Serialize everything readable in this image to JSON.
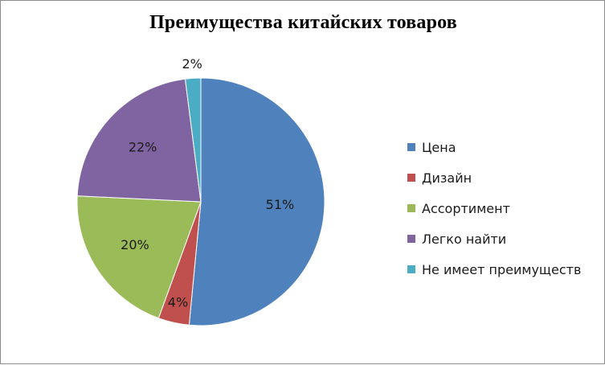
{
  "chart_data": {
    "type": "pie",
    "title": "Преимущества китайских товаров",
    "categories": [
      "Цена",
      "Дизайн",
      "Ассортимент",
      "Легко найти",
      "Не имеет преимуществ"
    ],
    "values": [
      51,
      4,
      20,
      22,
      2
    ],
    "data_labels": [
      "51%",
      "4%",
      "20%",
      "22%",
      "2%"
    ],
    "colors": [
      "#4f81bd",
      "#c0504d",
      "#9bbb59",
      "#8064a2",
      "#4bacc6"
    ],
    "legend_position": "right"
  }
}
